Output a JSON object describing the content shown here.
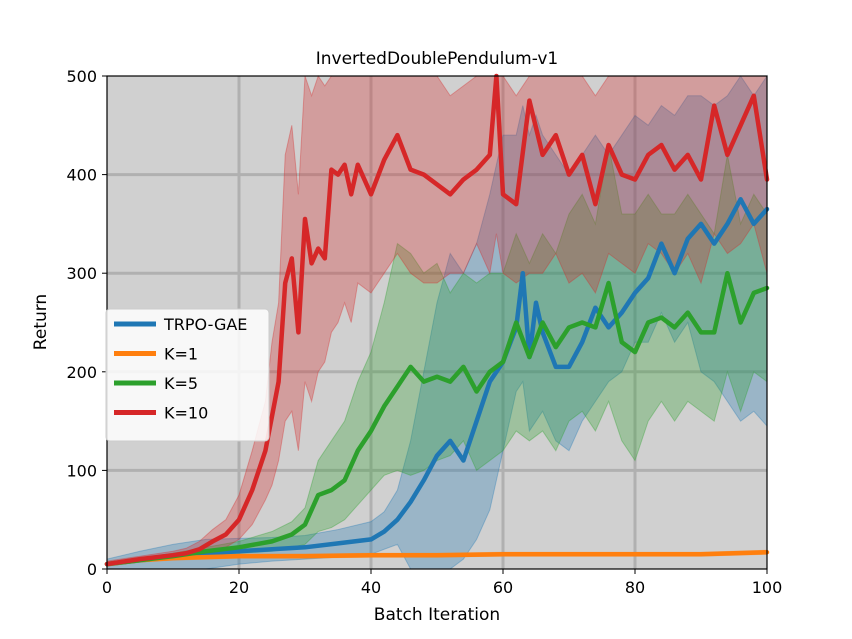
{
  "chart_data": {
    "type": "line",
    "title": "InvertedDoublePendulum-v1",
    "xlabel": "Batch Iteration",
    "ylabel": "Return",
    "xlim": [
      0,
      100
    ],
    "ylim": [
      0,
      500
    ],
    "xticks": [
      0,
      20,
      40,
      60,
      80,
      100
    ],
    "yticks": [
      0,
      100,
      200,
      300,
      400,
      500
    ],
    "grid": true,
    "legend_position": "center-left",
    "background": "#d0d0d0",
    "grid_color": "#b0b0b0",
    "series": [
      {
        "name": "TRPO-GAE",
        "color": "#1f77b4",
        "x": [
          0,
          5,
          10,
          15,
          20,
          25,
          30,
          35,
          40,
          42,
          44,
          46,
          48,
          50,
          52,
          54,
          56,
          58,
          60,
          62,
          63,
          64,
          65,
          66,
          68,
          70,
          72,
          74,
          76,
          78,
          80,
          82,
          84,
          86,
          88,
          90,
          92,
          94,
          96,
          98,
          100
        ],
        "y": [
          5,
          9,
          13,
          16,
          18,
          20,
          22,
          26,
          30,
          38,
          50,
          68,
          90,
          115,
          130,
          110,
          150,
          190,
          210,
          245,
          300,
          215,
          270,
          240,
          205,
          205,
          230,
          265,
          245,
          260,
          280,
          295,
          330,
          300,
          335,
          350,
          330,
          350,
          375,
          350,
          365
        ],
        "band_low": [
          0,
          0,
          0,
          0,
          5,
          8,
          10,
          12,
          15,
          20,
          25,
          0,
          0,
          0,
          0,
          10,
          30,
          60,
          120,
          180,
          190,
          140,
          150,
          160,
          130,
          120,
          150,
          170,
          190,
          200,
          230,
          230,
          260,
          230,
          250,
          200,
          190,
          170,
          150,
          160,
          145
        ],
        "band_high": [
          10,
          18,
          25,
          30,
          31,
          32,
          34,
          40,
          48,
          58,
          80,
          130,
          200,
          270,
          320,
          300,
          330,
          380,
          440,
          440,
          470,
          440,
          460,
          440,
          420,
          400,
          420,
          440,
          420,
          440,
          460,
          450,
          470,
          460,
          480,
          480,
          470,
          480,
          500,
          480,
          500
        ]
      },
      {
        "name": "K=1",
        "color": "#ff7f0e",
        "x": [
          0,
          5,
          10,
          15,
          20,
          30,
          40,
          50,
          60,
          70,
          80,
          90,
          95,
          100
        ],
        "y": [
          5,
          9,
          11,
          12,
          13,
          13,
          14,
          14,
          15,
          15,
          15,
          15,
          16,
          17
        ],
        "band_low": [
          3,
          7,
          9,
          10,
          11,
          11,
          12,
          12,
          13,
          13,
          13,
          13,
          14,
          15
        ],
        "band_high": [
          7,
          11,
          13,
          14,
          15,
          15,
          16,
          16,
          17,
          17,
          17,
          17,
          18,
          19
        ]
      },
      {
        "name": "K=5",
        "color": "#2ca02c",
        "x": [
          0,
          5,
          10,
          15,
          20,
          25,
          28,
          30,
          32,
          34,
          36,
          38,
          40,
          42,
          44,
          46,
          48,
          50,
          52,
          54,
          56,
          58,
          60,
          62,
          64,
          66,
          68,
          70,
          72,
          74,
          76,
          78,
          80,
          82,
          84,
          86,
          88,
          90,
          92,
          94,
          96,
          98,
          100
        ],
        "y": [
          5,
          9,
          13,
          18,
          22,
          28,
          35,
          45,
          75,
          80,
          90,
          120,
          140,
          165,
          185,
          205,
          190,
          195,
          190,
          205,
          180,
          200,
          210,
          250,
          215,
          250,
          225,
          245,
          250,
          245,
          290,
          230,
          220,
          250,
          255,
          245,
          260,
          240,
          240,
          300,
          250,
          280,
          285
        ],
        "band_low": [
          3,
          7,
          10,
          14,
          16,
          18,
          22,
          25,
          38,
          42,
          50,
          65,
          80,
          95,
          100,
          95,
          100,
          110,
          115,
          130,
          100,
          110,
          120,
          140,
          130,
          140,
          120,
          150,
          160,
          140,
          170,
          130,
          110,
          150,
          170,
          150,
          170,
          160,
          150,
          200,
          160,
          200,
          190
        ],
        "band_high": [
          7,
          11,
          16,
          22,
          28,
          38,
          48,
          62,
          110,
          130,
          150,
          190,
          220,
          270,
          330,
          320,
          300,
          310,
          280,
          300,
          290,
          300,
          300,
          340,
          310,
          340,
          320,
          360,
          380,
          350,
          430,
          360,
          360,
          380,
          360,
          360,
          380,
          360,
          340,
          420,
          350,
          380,
          360
        ]
      },
      {
        "name": "K=10",
        "color": "#d62728",
        "x": [
          0,
          5,
          10,
          12,
          14,
          16,
          18,
          20,
          22,
          24,
          25,
          26,
          27,
          28,
          29,
          30,
          31,
          32,
          33,
          34,
          35,
          36,
          37,
          38,
          40,
          42,
          44,
          46,
          48,
          50,
          52,
          54,
          56,
          58,
          59,
          60,
          62,
          64,
          66,
          68,
          70,
          72,
          74,
          76,
          78,
          80,
          82,
          84,
          86,
          88,
          90,
          92,
          94,
          96,
          98,
          100
        ],
        "y": [
          5,
          10,
          14,
          16,
          20,
          28,
          35,
          50,
          80,
          120,
          155,
          190,
          290,
          315,
          240,
          355,
          310,
          325,
          315,
          405,
          400,
          410,
          380,
          410,
          380,
          415,
          440,
          405,
          400,
          390,
          380,
          395,
          405,
          420,
          500,
          380,
          370,
          475,
          420,
          440,
          400,
          420,
          370,
          430,
          400,
          395,
          420,
          430,
          405,
          420,
          395,
          470,
          420,
          450,
          480,
          395
        ],
        "band_low": [
          3,
          7,
          10,
          12,
          14,
          18,
          22,
          30,
          45,
          70,
          85,
          110,
          150,
          160,
          120,
          190,
          170,
          200,
          210,
          240,
          250,
          270,
          250,
          290,
          280,
          300,
          320,
          300,
          290,
          290,
          300,
          300,
          330,
          300,
          340,
          300,
          290,
          300,
          300,
          320,
          290,
          300,
          280,
          320,
          310,
          300,
          330,
          320,
          300,
          320,
          290,
          340,
          320,
          330,
          350,
          300
        ],
        "band_high": [
          8,
          13,
          18,
          21,
          28,
          40,
          50,
          75,
          120,
          170,
          230,
          270,
          420,
          450,
          380,
          500,
          480,
          500,
          490,
          500,
          500,
          500,
          500,
          500,
          500,
          500,
          500,
          500,
          500,
          500,
          480,
          490,
          500,
          500,
          500,
          500,
          480,
          500,
          500,
          500,
          500,
          500,
          480,
          500,
          500,
          500,
          500,
          500,
          500,
          500,
          500,
          500,
          500,
          500,
          500,
          500
        ]
      }
    ]
  }
}
